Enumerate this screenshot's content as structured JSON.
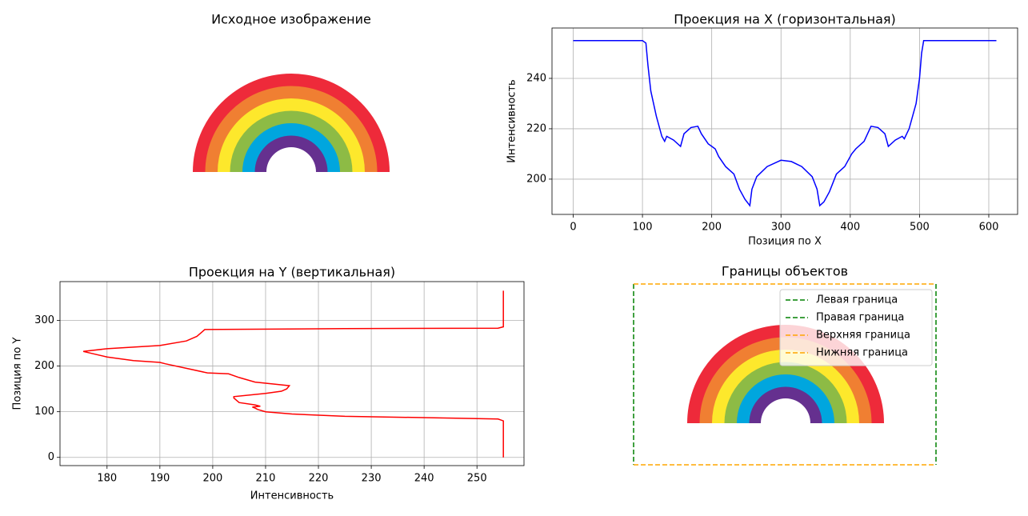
{
  "chart_data": [
    {
      "type": "image",
      "title": "Исходное изображение"
    },
    {
      "type": "line",
      "title": "Проекция на X (горизонтальная)",
      "xlabel": "Позиция по X",
      "ylabel": "Интенсивность",
      "x": [
        0,
        100,
        105,
        108,
        112,
        120,
        128,
        132,
        135,
        145,
        155,
        160,
        170,
        180,
        185,
        195,
        205,
        210,
        220,
        232,
        240,
        248,
        255,
        258,
        265,
        280,
        300,
        315,
        330,
        345,
        352,
        356,
        362,
        370,
        380,
        392,
        402,
        408,
        420,
        430,
        440,
        450,
        455,
        465,
        475,
        478,
        485,
        495,
        500,
        503,
        506,
        611
      ],
      "series": [
        {
          "color": "#0000ff",
          "values": [
            255,
            255,
            254,
            245,
            235,
            225,
            217,
            215,
            217,
            215.5,
            213,
            218,
            220.5,
            221,
            218,
            214,
            212,
            209,
            205,
            202,
            196,
            192,
            189.5,
            196,
            201,
            205,
            207.5,
            207,
            205,
            201,
            196,
            189.5,
            191,
            195,
            202,
            205,
            210,
            212,
            215,
            221,
            220.5,
            218,
            213,
            215.5,
            217,
            216,
            220,
            230,
            240,
            250,
            255,
            255
          ]
        }
      ],
      "xlim": [
        -30.6,
        641.6
      ],
      "ylim": [
        186,
        260
      ],
      "xticks": [
        0,
        100,
        200,
        300,
        400,
        500,
        600
      ],
      "yticks": [
        200,
        220,
        240
      ],
      "grid": true
    },
    {
      "type": "line",
      "title": "Проекция на Y (вертикальная)",
      "xlabel": "Интенсивность",
      "ylabel": "Позиция по Y",
      "x": [
        255,
        255,
        254,
        245,
        225,
        215,
        210,
        208.5,
        208,
        207.5,
        209,
        208,
        205,
        204,
        204,
        210,
        213,
        214,
        214.5,
        212,
        208,
        205,
        203,
        199,
        195,
        191,
        190,
        185,
        180,
        175.5,
        180,
        190,
        195,
        197,
        198,
        198.5,
        225,
        254,
        255,
        255,
        255
      ],
      "series": [
        {
          "color": "#ff0000",
          "values": [
            0,
            80,
            84,
            86,
            90,
            95,
            100,
            105,
            108,
            110,
            112,
            115,
            120,
            130,
            133,
            140,
            145,
            150,
            157,
            160,
            165,
            175,
            183,
            185,
            195,
            205,
            208,
            212,
            220,
            232,
            238,
            245,
            255,
            265,
            275,
            280,
            282,
            283,
            286,
            290,
            365
          ]
        }
      ],
      "xlim": [
        171.1,
        258.9
      ],
      "ylim": [
        -18,
        385
      ],
      "xticks": [
        180,
        190,
        200,
        210,
        220,
        230,
        240,
        250
      ],
      "yticks": [
        0,
        100,
        200,
        300
      ],
      "grid": true
    },
    {
      "type": "image",
      "title": "Границы объектов",
      "legend": "upper right",
      "series": [
        {
          "name": "Левая граница",
          "color": "#008000"
        },
        {
          "name": "Правая граница",
          "color": "#008000"
        },
        {
          "name": "Верхняя граница",
          "color": "#ffa500"
        },
        {
          "name": "Нижняя граница",
          "color": "#ffa500"
        }
      ]
    }
  ]
}
